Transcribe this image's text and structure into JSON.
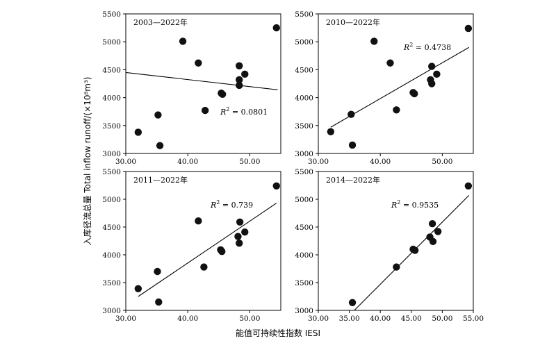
{
  "chart_data": {
    "type": "scatter",
    "xlabel": "能值可持续性指数 IESI",
    "ylabel": "入库径流总量 Total inflow runoff/(×10⁸m³)",
    "panels": [
      {
        "period": "2003—2022年",
        "r2": "= 0.0801",
        "r2_pos": "middle-right",
        "xlim": [
          30,
          55
        ],
        "xticks": [
          "30.00",
          "40.00",
          "50.00"
        ],
        "ylim": [
          3000,
          5500
        ],
        "yticks": [
          "3000",
          "3500",
          "4000",
          "4500",
          "5000",
          "5500"
        ],
        "trend": [
          [
            30,
            4450
          ],
          [
            54.5,
            4140
          ]
        ],
        "points": [
          {
            "x": 32.0,
            "y": 3380
          },
          {
            "x": 35.2,
            "y": 3690
          },
          {
            "x": 35.5,
            "y": 3140
          },
          {
            "x": 39.2,
            "y": 5010
          },
          {
            "x": 41.7,
            "y": 4620
          },
          {
            "x": 42.8,
            "y": 3770
          },
          {
            "x": 45.4,
            "y": 4080
          },
          {
            "x": 45.6,
            "y": 4060
          },
          {
            "x": 48.3,
            "y": 4570
          },
          {
            "x": 48.3,
            "y": 4320
          },
          {
            "x": 48.3,
            "y": 4220
          },
          {
            "x": 49.2,
            "y": 4420
          },
          {
            "x": 54.3,
            "y": 5250
          }
        ]
      },
      {
        "period": "2010—2022年",
        "r2": "= 0.4738",
        "r2_pos": "top-center",
        "xlim": [
          30,
          55
        ],
        "xticks": [
          "30.00",
          "40.00",
          "50.00"
        ],
        "ylim": [
          3000,
          5500
        ],
        "yticks": [
          "3000",
          "3500",
          "4000",
          "4500",
          "5000",
          "5500"
        ],
        "trend": [
          [
            32,
            3470
          ],
          [
            54.3,
            4900
          ]
        ],
        "points": [
          {
            "x": 32.0,
            "y": 3390
          },
          {
            "x": 35.3,
            "y": 3700
          },
          {
            "x": 35.5,
            "y": 3150
          },
          {
            "x": 39.0,
            "y": 5010
          },
          {
            "x": 41.6,
            "y": 4620
          },
          {
            "x": 42.6,
            "y": 3780
          },
          {
            "x": 45.3,
            "y": 4090
          },
          {
            "x": 45.5,
            "y": 4070
          },
          {
            "x": 48.3,
            "y": 4560
          },
          {
            "x": 48.1,
            "y": 4320
          },
          {
            "x": 48.3,
            "y": 4250
          },
          {
            "x": 49.1,
            "y": 4420
          },
          {
            "x": 54.2,
            "y": 5240
          }
        ]
      },
      {
        "period": "2011—2022年",
        "r2": "= 0.739",
        "r2_pos": "top-center",
        "xlim": [
          30,
          55
        ],
        "xticks": [
          "30.00",
          "40.00",
          "50.00"
        ],
        "ylim": [
          3000,
          5500
        ],
        "yticks": [
          "3000",
          "3500",
          "4000",
          "4500",
          "5000",
          "5500"
        ],
        "trend": [
          [
            32,
            3250
          ],
          [
            54.3,
            4930
          ]
        ],
        "points": [
          {
            "x": 32.0,
            "y": 3390
          },
          {
            "x": 35.1,
            "y": 3700
          },
          {
            "x": 35.3,
            "y": 3150
          },
          {
            "x": 41.7,
            "y": 4610
          },
          {
            "x": 42.6,
            "y": 3780
          },
          {
            "x": 45.3,
            "y": 4090
          },
          {
            "x": 45.5,
            "y": 4060
          },
          {
            "x": 48.4,
            "y": 4590
          },
          {
            "x": 48.1,
            "y": 4330
          },
          {
            "x": 48.3,
            "y": 4210
          },
          {
            "x": 49.2,
            "y": 4410
          },
          {
            "x": 54.3,
            "y": 5240
          }
        ]
      },
      {
        "period": "2014—2022年",
        "r2": "= 0.9535",
        "r2_pos": "top-center",
        "xlim": [
          30,
          55
        ],
        "xticks": [
          "30.00",
          "35.00",
          "40.00",
          "45.00",
          "50.00",
          "55.00"
        ],
        "ylim": [
          3000,
          5500
        ],
        "yticks": [
          "3000",
          "3500",
          "4000",
          "4500",
          "5000",
          "5500"
        ],
        "trend": [
          [
            35.8,
            3000
          ],
          [
            54.3,
            5070
          ]
        ],
        "points": [
          {
            "x": 35.5,
            "y": 3140
          },
          {
            "x": 42.6,
            "y": 3780
          },
          {
            "x": 45.3,
            "y": 4100
          },
          {
            "x": 45.6,
            "y": 4080
          },
          {
            "x": 48.4,
            "y": 4560
          },
          {
            "x": 48.0,
            "y": 4320
          },
          {
            "x": 48.5,
            "y": 4240
          },
          {
            "x": 49.3,
            "y": 4420
          },
          {
            "x": 54.2,
            "y": 5240
          }
        ]
      }
    ]
  }
}
